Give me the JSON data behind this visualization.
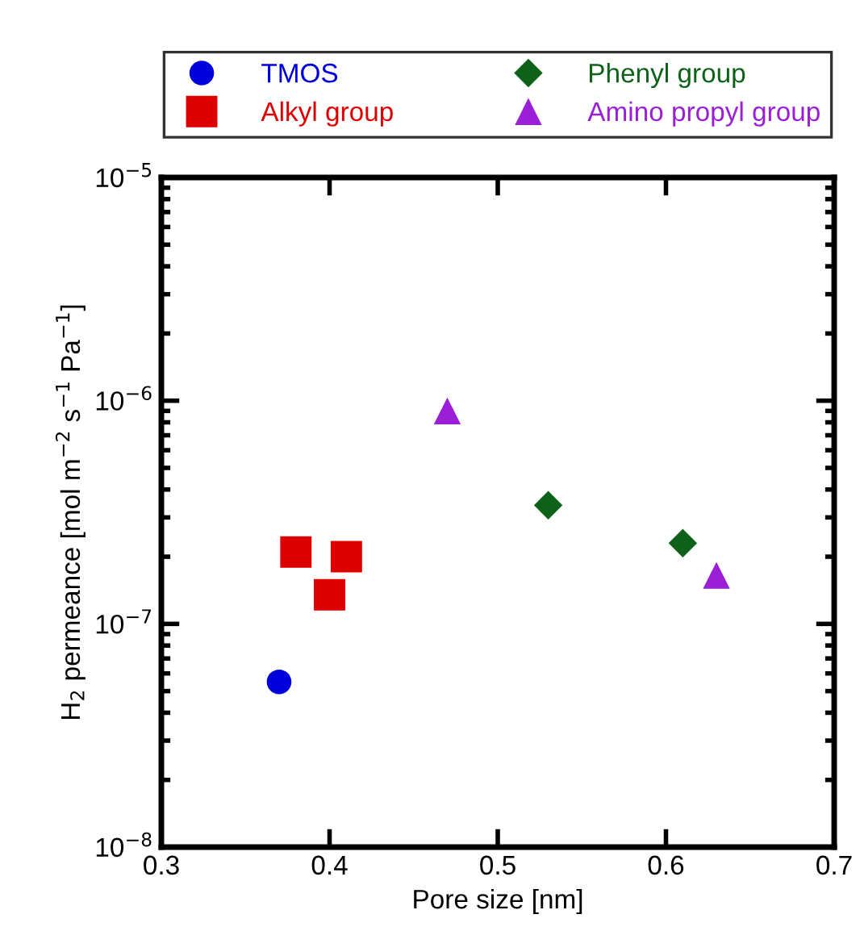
{
  "chart_data": {
    "type": "scatter",
    "xlabel": "Pore size [nm]",
    "ylabel": "H$_{2}$ permeance [mol m$^{−2}$ s$^{−1}$ Pa$^{−1}$]",
    "log": "y",
    "xlim": [
      0.3,
      0.7
    ],
    "xticks": [
      0.3,
      0.4,
      0.5,
      0.6,
      0.7
    ],
    "ylim": [
      1e-08,
      1e-05
    ],
    "yticks": [
      {
        "value": 1e-08,
        "label": "10$^{−8}$"
      },
      {
        "value": 1e-07,
        "label": "10$^{−7}$"
      },
      {
        "value": 1e-06,
        "label": "10$^{−6}$"
      },
      {
        "value": 1e-05,
        "label": "10$^{−5}$"
      }
    ],
    "legend": "top",
    "grid": false,
    "series": [
      {
        "name": "TMOS",
        "color": "#0000dd",
        "marker": "circle",
        "x": [
          0.37
        ],
        "values": [
          5.5e-08
        ]
      },
      {
        "name": "Alkyl group",
        "color": "#dd0000",
        "marker": "square",
        "x": [
          0.38,
          0.41,
          0.4
        ],
        "values": [
          2.1e-07,
          2e-07,
          1.35e-07
        ]
      },
      {
        "name": "Phenyl group",
        "color": "#0d6118",
        "marker": "diamond",
        "x": [
          0.53,
          0.61
        ],
        "values": [
          3.4e-07,
          2.3e-07
        ]
      },
      {
        "name": "Amino propyl group",
        "color": "#9b1fd6",
        "marker": "triangle",
        "x": [
          0.47,
          0.63
        ],
        "values": [
          9e-07,
          1.65e-07
        ]
      }
    ]
  }
}
